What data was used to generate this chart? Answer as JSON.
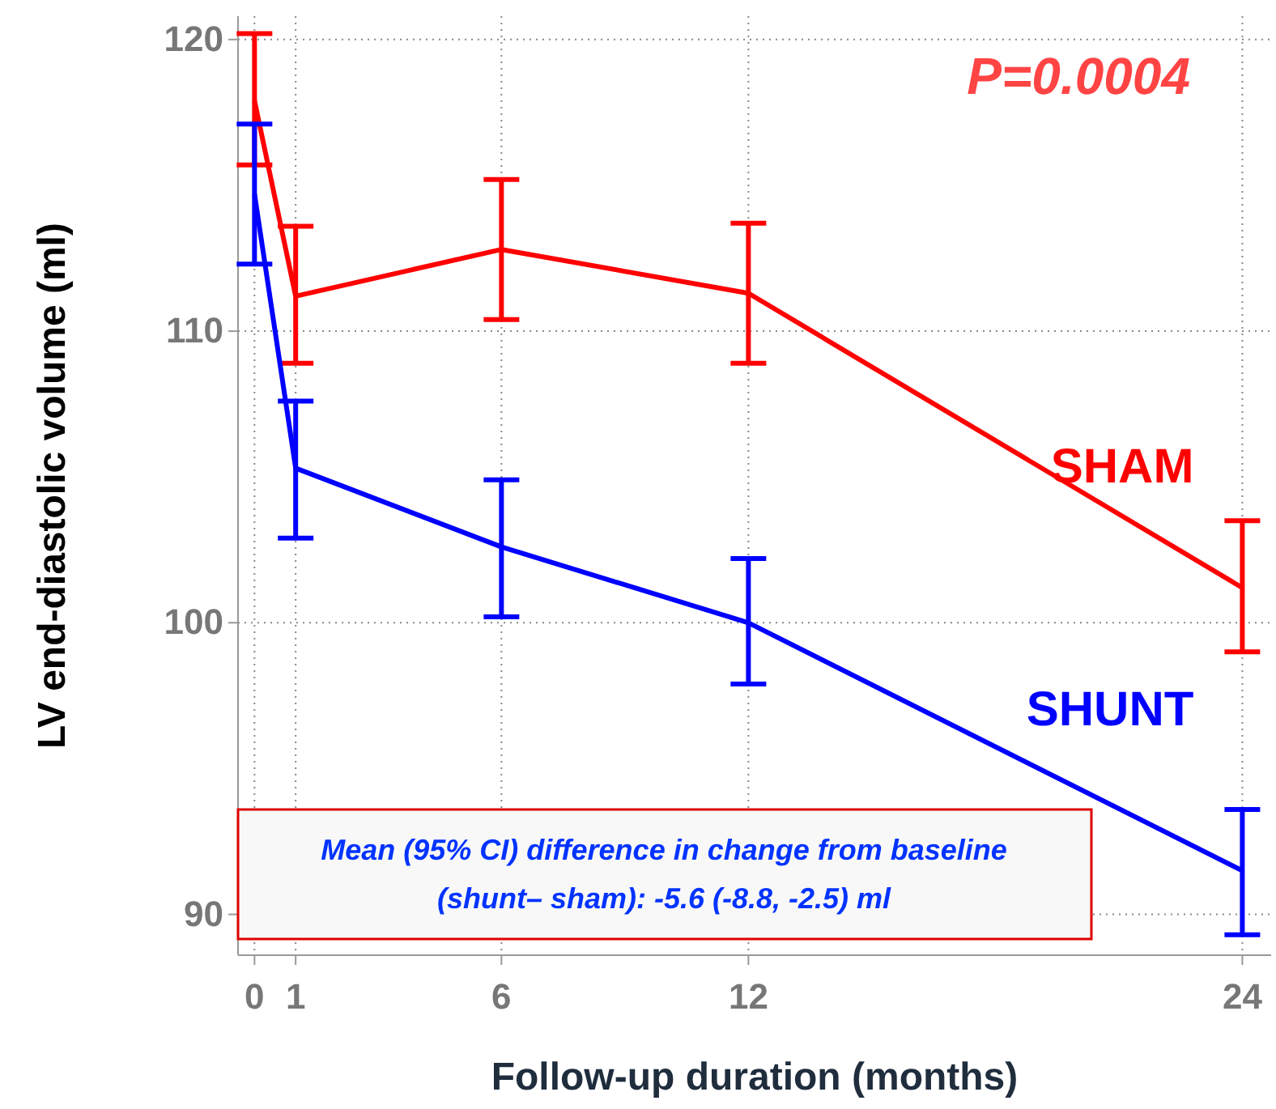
{
  "chart_data": {
    "type": "line",
    "xlabel": "Follow-up duration (months)",
    "ylabel": "LV end-diastolic volume (ml)",
    "x": [
      0,
      1,
      6,
      12,
      24
    ],
    "xlim": [
      -0.4,
      24.7
    ],
    "xticks": [
      0,
      1,
      6,
      12,
      24
    ],
    "ylim": [
      88.6,
      120.8
    ],
    "yticks": [
      90,
      100,
      110,
      120
    ],
    "grid": true,
    "marker": "none",
    "line_style": "solid",
    "series": [
      {
        "name": "SHAM",
        "color": "#ff0000",
        "values": [
          117.9,
          111.2,
          112.8,
          111.3,
          101.2
        ],
        "errors": [
          [
            115.7,
            120.2
          ],
          [
            108.9,
            113.6
          ],
          [
            110.4,
            115.2
          ],
          [
            108.9,
            113.7
          ],
          [
            99.0,
            103.5
          ]
        ]
      },
      {
        "name": "SHUNT",
        "color": "#0000ff",
        "values": [
          114.7,
          105.3,
          102.6,
          100.0,
          91.5
        ],
        "errors": [
          [
            112.3,
            117.1
          ],
          [
            102.9,
            107.6
          ],
          [
            100.2,
            104.9
          ],
          [
            97.9,
            102.2
          ],
          [
            89.3,
            93.6
          ]
        ]
      }
    ],
    "annotations": [
      "P=0.0004",
      "Mean (95% CI) difference in change from baseline (shunt– sham): -5.6 (-8.8, -2.5) ml"
    ]
  }
}
